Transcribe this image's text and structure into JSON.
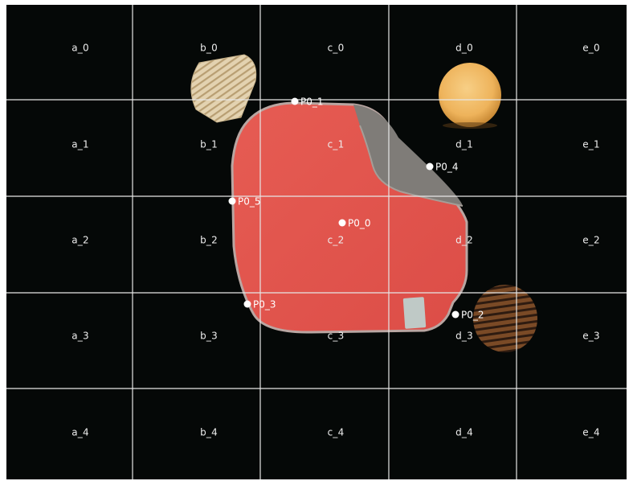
{
  "grid": {
    "columns": [
      "a",
      "b",
      "c",
      "d",
      "e"
    ],
    "rows": [
      "0",
      "1",
      "2",
      "3",
      "4"
    ],
    "cells": [
      [
        "a_0",
        "b_0",
        "c_0",
        "d_0",
        "e_0"
      ],
      [
        "a_1",
        "b_1",
        "c_1",
        "d_1",
        "e_1"
      ],
      [
        "a_2",
        "b_2",
        "c_2",
        "d_2",
        "e_2"
      ],
      [
        "a_3",
        "b_3",
        "c_3",
        "d_3",
        "e_3"
      ],
      [
        "a_4",
        "b_4",
        "c_4",
        "d_4",
        "e_4"
      ]
    ]
  },
  "points": [
    {
      "label": "P0_0"
    },
    {
      "label": "P0_1"
    },
    {
      "label": "P0_2"
    },
    {
      "label": "P0_3"
    },
    {
      "label": "P0_4"
    },
    {
      "label": "P0_5"
    }
  ],
  "colors": {
    "background": "#050807",
    "grid_line": "#e6e6e6",
    "towel": "#e4574f",
    "towel_fold": "#7f7c78",
    "wood_block": "#d9c8a6",
    "round_block": "#efb862",
    "striped_disk": "#6b3e20"
  },
  "objects": [
    {
      "name": "wooden-block-object"
    },
    {
      "name": "round-wooden-block-object"
    },
    {
      "name": "red-towel-object"
    },
    {
      "name": "folded-towel-corner"
    },
    {
      "name": "towel-label-tag"
    },
    {
      "name": "striped-disk-object"
    }
  ]
}
